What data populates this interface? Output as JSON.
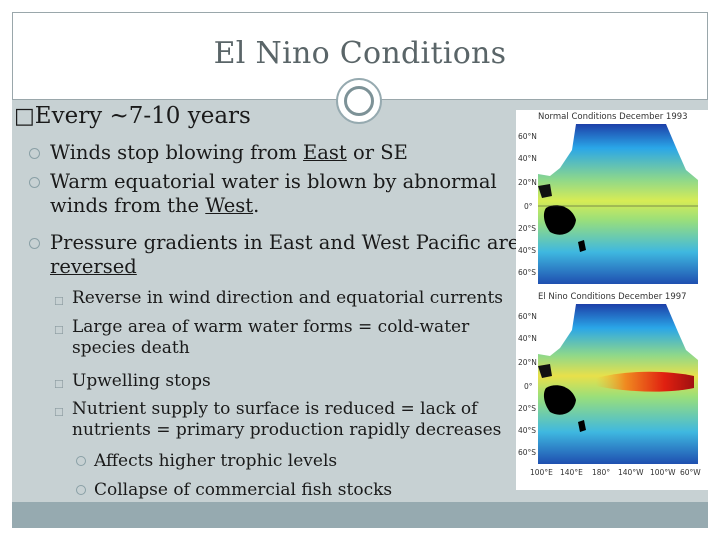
{
  "title": "El Nino Conditions",
  "level1": {
    "bullet": "□",
    "text": "Every ~7-10 years"
  },
  "level2": [
    {
      "pre": "Winds stop blowing from ",
      "link": "East",
      "post": " or SE"
    },
    {
      "pre": "Warm equatorial water is blown by abnormal winds from the ",
      "link": "West",
      "post": "."
    },
    {
      "pre": "Pressure gradients in East and West Pacific are ",
      "link": "reversed",
      "post": ""
    }
  ],
  "level3": [
    "Reverse in wind direction and equatorial currents",
    "Large area of warm water forms = cold-water species death",
    "Upwelling stops",
    "Nutrient supply to surface is reduced = lack of nutrients = primary production rapidly decreases"
  ],
  "level4": [
    "Affects higher trophic levels",
    "Collapse of commercial fish stocks"
  ],
  "maps": [
    {
      "caption": "Normal Conditions December 1993",
      "lat_labels": [
        "60°N",
        "40°N",
        "20°N",
        "0°",
        "20°S",
        "40°S",
        "60°S"
      ]
    },
    {
      "caption": "El Nino Conditions December 1997",
      "lat_labels": [
        "60°N",
        "40°N",
        "20°N",
        "0°",
        "20°S",
        "40°S",
        "60°S"
      ],
      "lon_labels": [
        "100°E",
        "140°E",
        "180°",
        "140°W",
        "100°W",
        "60°W"
      ]
    }
  ],
  "colors": {
    "content_bg": "#c7d1d3",
    "footer_bar": "#96aab0",
    "bullet_ring": "#8aa0a6",
    "title": "#5a6568"
  }
}
